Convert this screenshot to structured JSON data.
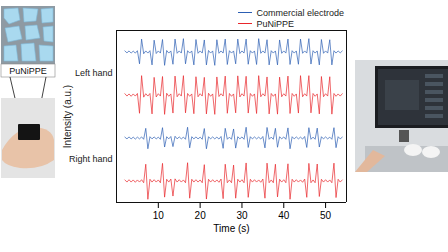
{
  "chart_data": {
    "type": "line",
    "x_label": "Time (s)",
    "y_label": "Intensity (a.u.)",
    "xlim": [
      0,
      55
    ],
    "xticks": [
      10,
      20,
      30,
      40,
      50
    ],
    "ylim": [
      -1,
      1
    ],
    "tick_labels": "x",
    "grid": false,
    "legend": "top-right",
    "x": [
      2,
      2.5,
      3,
      3.5,
      4,
      4.5,
      5,
      5.5,
      6,
      6.5,
      7,
      7.5,
      8,
      8.5,
      9,
      9.5,
      10,
      10.5,
      11,
      11.5,
      12,
      12.5,
      13,
      13.5,
      14,
      14.5,
      15,
      15.5,
      16,
      16.5,
      17,
      17.5,
      18,
      18.5,
      19,
      19.5,
      20,
      20.5,
      21,
      21.5,
      22,
      22.5,
      23,
      23.5,
      24,
      24.5,
      25,
      25.5,
      26,
      26.5,
      27,
      27.5,
      28,
      28.5,
      29,
      29.5,
      30,
      30.5,
      31,
      31.5,
      32,
      32.5,
      33,
      33.5,
      34,
      34.5,
      35,
      35.5,
      36,
      36.5,
      37,
      37.5,
      38,
      38.5,
      39,
      39.5,
      40,
      40.5,
      41,
      41.5,
      42,
      42.5,
      43,
      43.5,
      44,
      44.5,
      45,
      45.5,
      46,
      46.5,
      47,
      47.5,
      48,
      48.5,
      49,
      49.5,
      50,
      50.5,
      51,
      51.5,
      52,
      52.5,
      53,
      53.5,
      54
    ],
    "series": [
      {
        "name": "Commercial electrode",
        "group": "Left hand",
        "color": "#2c5fb3",
        "values": [
          0.05,
          -0.04,
          0.05,
          -0.05,
          0.04,
          -0.05,
          0.06,
          -0.55,
          0.6,
          -0.08,
          0.05,
          -0.05,
          0.06,
          -0.6,
          0.55,
          -0.07,
          0.05,
          -0.05,
          0.58,
          -0.62,
          0.07,
          -0.05,
          0.05,
          -0.57,
          0.6,
          -0.06,
          0.05,
          -0.05,
          0.62,
          -0.55,
          0.06,
          -0.05,
          0.05,
          -0.6,
          0.58,
          -0.06,
          0.05,
          -0.05,
          0.56,
          -0.6,
          0.07,
          -0.05,
          0.05,
          -0.62,
          0.57,
          -0.06,
          0.05,
          -0.05,
          0.6,
          -0.58,
          0.06,
          -0.05,
          0.05,
          -0.55,
          0.6,
          -0.07,
          0.05,
          -0.05,
          0.6,
          -0.57,
          0.06,
          -0.05,
          0.05,
          -0.58,
          0.62,
          -0.06,
          0.05,
          -0.05,
          0.57,
          -0.6,
          0.06,
          -0.05,
          0.05,
          -0.6,
          0.56,
          -0.06,
          0.05,
          -0.05,
          0.6,
          -0.58,
          0.06,
          -0.05,
          0.05,
          -0.57,
          0.6,
          -0.06,
          0.05,
          -0.05,
          0.62,
          -0.56,
          0.06,
          -0.05,
          0.05,
          -0.6,
          0.58,
          -0.06,
          0.05,
          -0.05,
          0.57,
          -0.6,
          0.06,
          -0.05,
          0.05,
          -0.04,
          0.05
        ]
      },
      {
        "name": "PuNiPPE",
        "group": "Left hand",
        "color": "#e8262b",
        "values": [
          0.06,
          -0.05,
          0.05,
          -0.06,
          0.05,
          -0.05,
          0.07,
          -0.85,
          0.9,
          -0.1,
          0.06,
          -0.05,
          0.07,
          -0.88,
          0.82,
          -0.09,
          0.06,
          -0.05,
          0.86,
          -0.9,
          0.08,
          -0.06,
          0.05,
          -0.84,
          0.88,
          -0.08,
          0.06,
          -0.05,
          0.9,
          -0.83,
          0.07,
          -0.06,
          0.05,
          -0.87,
          0.85,
          -0.08,
          0.06,
          -0.05,
          0.82,
          -0.88,
          0.08,
          -0.06,
          0.05,
          -0.9,
          0.84,
          -0.07,
          0.06,
          -0.05,
          0.88,
          -0.85,
          0.07,
          -0.06,
          0.05,
          -0.83,
          0.89,
          -0.09,
          0.06,
          -0.05,
          0.87,
          -0.84,
          0.07,
          -0.06,
          0.05,
          -0.86,
          0.9,
          -0.08,
          0.06,
          -0.05,
          0.84,
          -0.88,
          0.07,
          -0.06,
          0.05,
          -0.89,
          0.83,
          -0.08,
          0.06,
          -0.05,
          0.88,
          -0.86,
          0.07,
          -0.06,
          0.05,
          -0.84,
          0.9,
          -0.08,
          0.06,
          -0.05,
          0.9,
          -0.83,
          0.07,
          -0.06,
          0.05,
          -0.88,
          0.86,
          -0.08,
          0.06,
          -0.05,
          0.85,
          -0.89,
          0.07,
          -0.06,
          0.05,
          -0.05,
          0.06
        ]
      },
      {
        "name": "Commercial electrode",
        "group": "Right hand",
        "color": "#2c5fb3",
        "values": [
          0.04,
          -0.04,
          0.05,
          -0.04,
          0.04,
          -0.05,
          0.04,
          -0.04,
          0.05,
          -0.06,
          0.45,
          -0.5,
          0.06,
          -0.04,
          0.05,
          -0.04,
          0.04,
          -0.06,
          0.48,
          -0.42,
          0.06,
          -0.04,
          0.07,
          -0.4,
          0.08,
          -0.04,
          0.05,
          -0.04,
          0.04,
          -0.06,
          0.5,
          -0.46,
          0.06,
          -0.04,
          0.05,
          -0.04,
          0.04,
          -0.06,
          0.44,
          -0.5,
          0.06,
          -0.04,
          0.05,
          -0.04,
          0.04,
          -0.05,
          0.07,
          -0.48,
          0.45,
          -0.06,
          0.04,
          -0.06,
          0.42,
          -0.47,
          0.06,
          -0.04,
          0.05,
          -0.06,
          0.5,
          -0.44,
          0.06,
          -0.04,
          0.05,
          -0.04,
          0.04,
          -0.05,
          0.07,
          -0.46,
          0.49,
          -0.06,
          0.04,
          -0.06,
          0.45,
          -0.43,
          0.06,
          -0.04,
          0.05,
          -0.06,
          0.47,
          -0.5,
          0.06,
          -0.04,
          0.05,
          -0.04,
          0.04,
          -0.05,
          0.07,
          -0.44,
          0.48,
          -0.06,
          0.04,
          -0.06,
          0.46,
          -0.42,
          0.06,
          -0.04,
          0.05,
          -0.04,
          0.04,
          -0.06,
          0.48,
          -0.45,
          0.06,
          -0.04,
          0.04
        ]
      },
      {
        "name": "PuNiPPE",
        "group": "Right hand",
        "color": "#e8262b",
        "values": [
          0.05,
          -0.05,
          0.06,
          -0.05,
          0.05,
          -0.06,
          0.05,
          -0.05,
          0.06,
          -0.08,
          0.78,
          -0.85,
          0.08,
          -0.05,
          0.06,
          -0.05,
          0.05,
          -0.08,
          0.82,
          -0.75,
          0.08,
          -0.05,
          0.09,
          -0.7,
          0.1,
          -0.05,
          0.06,
          -0.05,
          0.05,
          -0.08,
          0.85,
          -0.8,
          0.08,
          -0.05,
          0.06,
          -0.05,
          0.05,
          -0.08,
          0.76,
          -0.84,
          0.08,
          -0.05,
          0.06,
          -0.05,
          0.05,
          -0.06,
          0.09,
          -0.82,
          0.78,
          -0.08,
          0.05,
          -0.08,
          0.74,
          -0.8,
          0.08,
          -0.05,
          0.06,
          -0.08,
          0.84,
          -0.76,
          0.08,
          -0.05,
          0.06,
          -0.05,
          0.05,
          -0.06,
          0.09,
          -0.8,
          0.83,
          -0.08,
          0.05,
          -0.08,
          0.78,
          -0.74,
          0.08,
          -0.05,
          0.06,
          -0.08,
          0.8,
          -0.85,
          0.08,
          -0.05,
          0.06,
          -0.05,
          0.05,
          -0.06,
          0.09,
          -0.76,
          0.82,
          -0.08,
          0.05,
          -0.08,
          0.79,
          -0.72,
          0.08,
          -0.05,
          0.06,
          -0.05,
          0.05,
          -0.08,
          0.83,
          -0.77,
          0.08,
          -0.05,
          0.05
        ]
      }
    ]
  },
  "figure_panels": {
    "schematic_label": "PuNiPPE"
  }
}
